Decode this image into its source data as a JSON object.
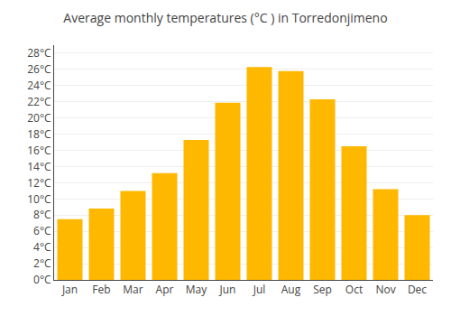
{
  "chart_data": {
    "type": "bar",
    "title": "Average monthly temperatures (°C ) in Torredonjimeno",
    "categories": [
      "Jan",
      "Feb",
      "Mar",
      "Apr",
      "May",
      "Jun",
      "Jul",
      "Aug",
      "Sep",
      "Oct",
      "Nov",
      "Dec"
    ],
    "values": [
      7.5,
      8.8,
      11.0,
      13.2,
      17.3,
      21.9,
      26.3,
      25.8,
      22.3,
      16.5,
      11.2,
      8.0
    ],
    "color": "#FFB800",
    "ylim": [
      0,
      29
    ],
    "yticks": [
      {
        "value": 0,
        "label": "0°C"
      },
      {
        "value": 2,
        "label": "2°C"
      },
      {
        "value": 4,
        "label": "4°C"
      },
      {
        "value": 6,
        "label": "6°C"
      },
      {
        "value": 8,
        "label": "8°C"
      },
      {
        "value": 10,
        "label": "10°C"
      },
      {
        "value": 12,
        "label": "12°C"
      },
      {
        "value": 14,
        "label": "14°C"
      },
      {
        "value": 16,
        "label": "16°C"
      },
      {
        "value": 18,
        "label": "18°C"
      },
      {
        "value": 20,
        "label": "20°C"
      },
      {
        "value": 22,
        "label": "22°C"
      },
      {
        "value": 24,
        "label": "24°C"
      },
      {
        "value": 26,
        "label": "26°C"
      },
      {
        "value": 28,
        "label": "28°C"
      }
    ],
    "grid": true
  }
}
